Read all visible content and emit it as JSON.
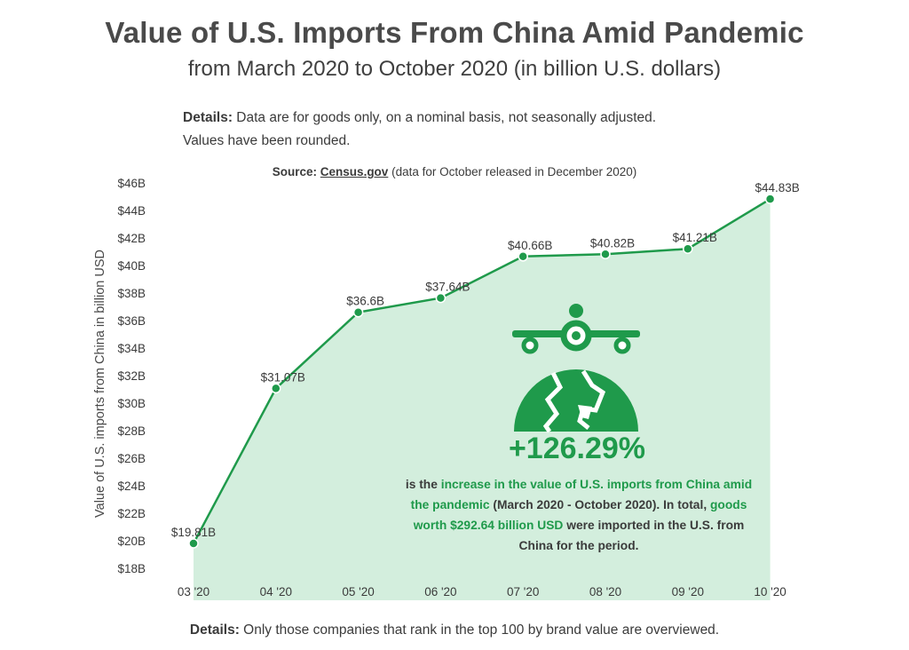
{
  "title": "Value of U.S. Imports From China Amid Pandemic",
  "subtitle": "from March 2020 to October 2020 (in billion U.S. dollars)",
  "details_top": {
    "label": "Details:",
    "line1": " Data are for goods only, on a nominal basis, not seasonally adjusted.",
    "line2": "Values have been rounded."
  },
  "source": {
    "label": "Source:",
    "link": "Census.gov",
    "note": " (data for October released in December 2020)"
  },
  "callout": {
    "headline": "+126.29%",
    "p1": "is the ",
    "p2": "increase in the value of U.S. imports from China amid the pandemic",
    "p3": " (March 2020 - October 2020). In total, ",
    "p4": "goods worth $292.64 billion USD",
    "p5": " were imported in the U.S. from China for the period."
  },
  "details_bottom": {
    "label": "Details:",
    "text": " Only those companies that rank in the top 100 by brand value are overviewed."
  },
  "colors": {
    "line": "#1f9a4b",
    "area": "#d3eedd",
    "icon": "#1f9a4b"
  },
  "icons": [
    "airplane-icon",
    "globe-icon"
  ],
  "chart_data": {
    "type": "area",
    "ylabel": "Value of U.S. imports from China in billion USD",
    "xlabel": "",
    "categories": [
      "03 '20",
      "04 '20",
      "05 '20",
      "06 '20",
      "07 '20",
      "08 '20",
      "09 '20",
      "10 '20"
    ],
    "values": [
      19.81,
      31.07,
      36.6,
      37.64,
      40.66,
      40.82,
      41.21,
      44.83
    ],
    "value_labels": [
      "$19.81B",
      "$31.07B",
      "$36.6B",
      "$37.64B",
      "$40.66B",
      "$40.82B",
      "$41.21B",
      "$44.83B"
    ],
    "yticks": [
      "$18B",
      "$20B",
      "$22B",
      "$24B",
      "$26B",
      "$28B",
      "$30B",
      "$32B",
      "$34B",
      "$36B",
      "$38B",
      "$40B",
      "$42B",
      "$44B",
      "$46B"
    ],
    "ylim": [
      18,
      46
    ],
    "grid": false,
    "legend": "none"
  }
}
